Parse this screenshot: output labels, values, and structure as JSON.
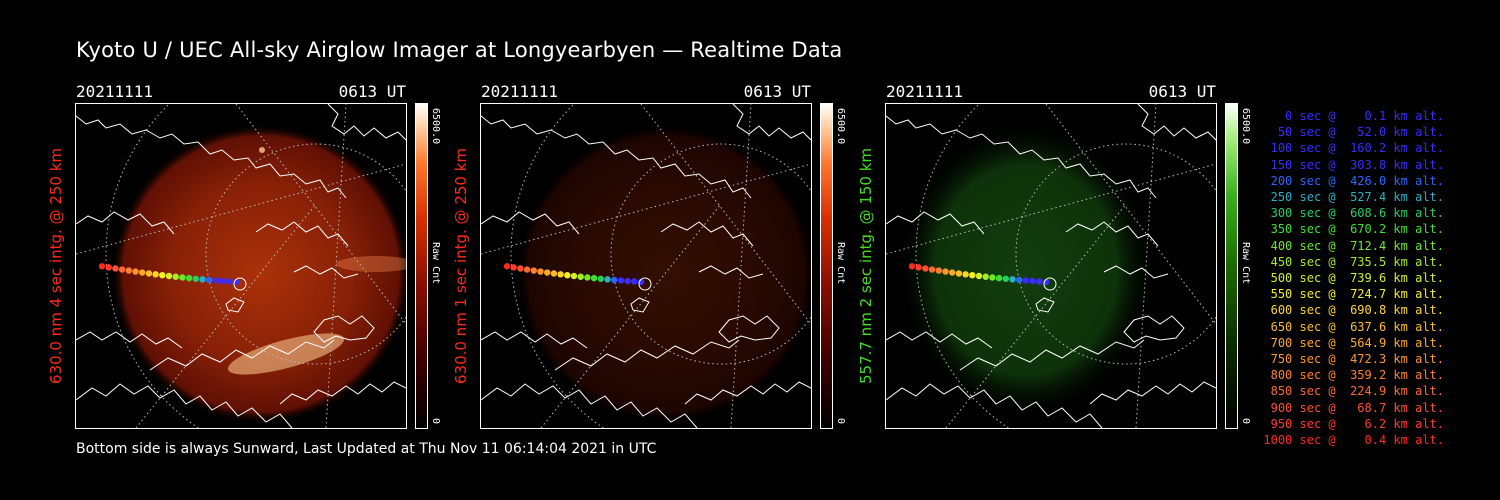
{
  "title": "Kyoto U / UEC All-sky Airglow Imager at Longyearbyen — Realtime Data",
  "panels": [
    {
      "date": "20211111",
      "time": "0613 UT",
      "label": "630.0 nm 4 sec intg. @ 250 km",
      "label_color": "#ff2a1a",
      "scale_max": "6500.0",
      "scale_min": "0",
      "unit": "Raw Cnt",
      "colormap": "red",
      "brightness": 1.0
    },
    {
      "date": "20211111",
      "time": "0613 UT",
      "label": "630.0 nm 1 sec intg. @ 250 km",
      "label_color": "#ff2a1a",
      "scale_max": "6500.0",
      "scale_min": "0",
      "unit": "Raw Cnt",
      "colormap": "red",
      "brightness": 0.3
    },
    {
      "date": "20211111",
      "time": "0613 UT",
      "label": "557.7 nm 2 sec intg. @ 150 km",
      "label_color": "#44dd22",
      "scale_max": "6500.0",
      "scale_min": "0",
      "unit": "Raw Cnt",
      "colormap": "green",
      "brightness": 0.5
    }
  ],
  "legend": [
    {
      "text": "   0 sec @    0.1 km alt.",
      "color": "#3b2cff"
    },
    {
      "text": "  50 sec @   52.0 km alt.",
      "color": "#3b2cff"
    },
    {
      "text": " 100 sec @  160.2 km alt.",
      "color": "#3b2cff"
    },
    {
      "text": " 150 sec @  303.8 km alt.",
      "color": "#3b2cff"
    },
    {
      "text": " 200 sec @  426.0 km alt.",
      "color": "#2a66ff"
    },
    {
      "text": " 250 sec @  527.4 km alt.",
      "color": "#2ab0c8"
    },
    {
      "text": " 300 sec @  608.6 km alt.",
      "color": "#22d060"
    },
    {
      "text": " 350 sec @  670.2 km alt.",
      "color": "#3ee030"
    },
    {
      "text": " 400 sec @  712.4 km alt.",
      "color": "#6ee828"
    },
    {
      "text": " 450 sec @  735.5 km alt.",
      "color": "#a4ee28"
    },
    {
      "text": " 500 sec @  739.6 km alt.",
      "color": "#d6f028"
    },
    {
      "text": " 550 sec @  724.7 km alt.",
      "color": "#f4f028"
    },
    {
      "text": " 600 sec @  690.8 km alt.",
      "color": "#ffd628"
    },
    {
      "text": " 650 sec @  637.6 km alt.",
      "color": "#ffbe28"
    },
    {
      "text": " 700 sec @  564.9 km alt.",
      "color": "#ffaa28"
    },
    {
      "text": " 750 sec @  472.3 km alt.",
      "color": "#ff962a"
    },
    {
      "text": " 800 sec @  359.2 km alt.",
      "color": "#ff8030"
    },
    {
      "text": " 850 sec @  224.9 km alt.",
      "color": "#ff6a30"
    },
    {
      "text": " 900 sec @   68.7 km alt.",
      "color": "#ff5030"
    },
    {
      "text": " 950 sec @    6.2 km alt.",
      "color": "#ff3a2a"
    },
    {
      "text": "1000 sec @    0.4 km alt.",
      "color": "#ff2a1a"
    }
  ],
  "footer": "Bottom side is always Sunward, Last Updated at Thu Nov 11 06:14:04 2021 in UTC"
}
